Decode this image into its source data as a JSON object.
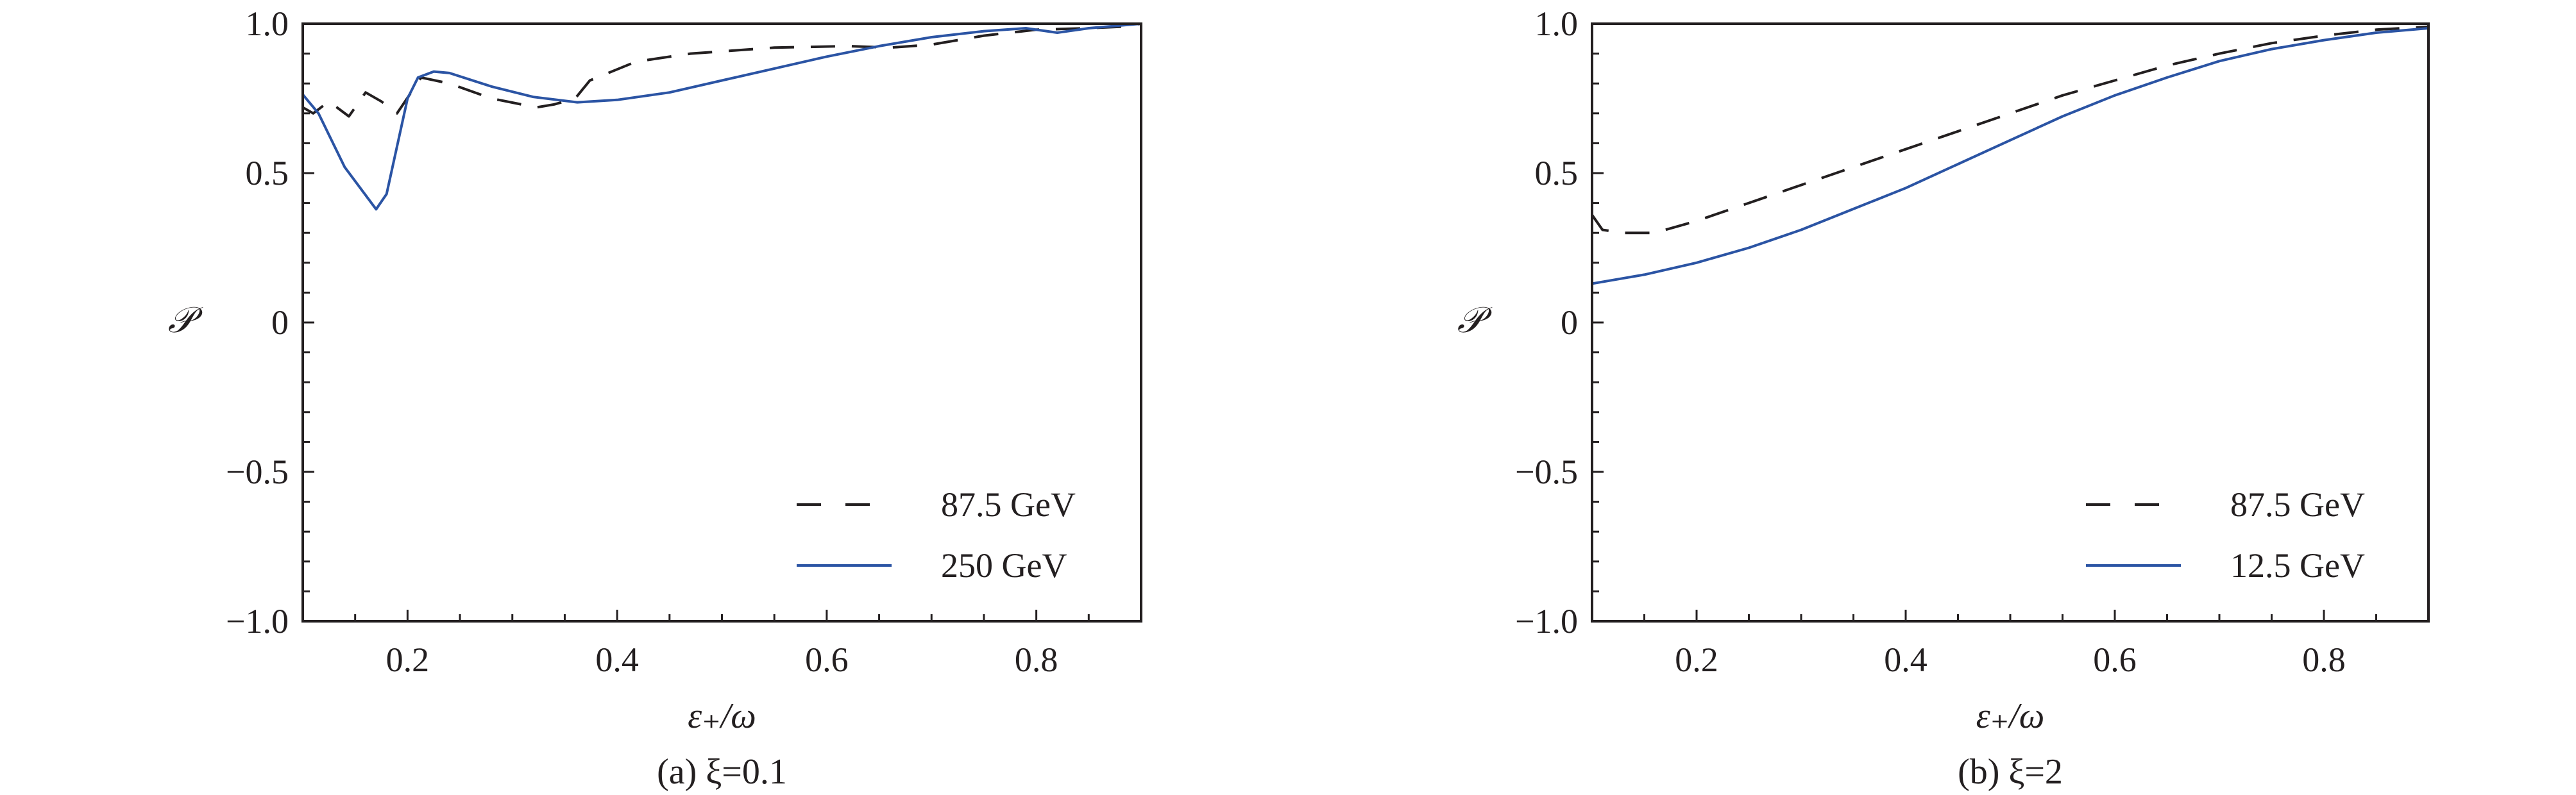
{
  "chart_data": [
    {
      "type": "line",
      "id": "a",
      "caption": "(a) ξ=0.1",
      "xlabel": "ε₊/ω",
      "ylabel": "𝒫",
      "xlim": [
        0.1,
        0.9
      ],
      "ylim": [
        -1.0,
        1.0
      ],
      "xticks": [
        0.2,
        0.4,
        0.6,
        0.8
      ],
      "xtick_labels": [
        "0.2",
        "0.4",
        "0.6",
        "0.8"
      ],
      "yticks": [
        -1.0,
        -0.5,
        0,
        0.5,
        1.0
      ],
      "ytick_labels": [
        "−1.0",
        "−0.5",
        "0",
        "0.5",
        "1.0"
      ],
      "grid": false,
      "legend_position": "bottom-right",
      "series": [
        {
          "name": "87.5 GeV",
          "style": "dashed",
          "color": "#231f20",
          "x": [
            0.1,
            0.11,
            0.125,
            0.144,
            0.16,
            0.175,
            0.19,
            0.213,
            0.24,
            0.28,
            0.323,
            0.34,
            0.36,
            0.374,
            0.418,
            0.47,
            0.55,
            0.62,
            0.66,
            0.7,
            0.75,
            0.8,
            0.85,
            0.88,
            0.9
          ],
          "y": [
            0.72,
            0.7,
            0.74,
            0.69,
            0.77,
            0.74,
            0.7,
            0.82,
            0.8,
            0.75,
            0.72,
            0.73,
            0.75,
            0.81,
            0.873,
            0.9,
            0.92,
            0.925,
            0.92,
            0.93,
            0.96,
            0.98,
            0.985,
            0.99,
            1.0
          ]
        },
        {
          "name": "250 GeV",
          "style": "solid",
          "color": "#2b54a4",
          "x": [
            0.1,
            0.115,
            0.14,
            0.17,
            0.18,
            0.2,
            0.21,
            0.225,
            0.24,
            0.28,
            0.32,
            0.362,
            0.4,
            0.45,
            0.5,
            0.55,
            0.6,
            0.65,
            0.7,
            0.75,
            0.79,
            0.82,
            0.85,
            0.9
          ],
          "y": [
            0.763,
            0.7,
            0.52,
            0.379,
            0.43,
            0.75,
            0.82,
            0.84,
            0.835,
            0.79,
            0.755,
            0.737,
            0.745,
            0.77,
            0.81,
            0.85,
            0.89,
            0.925,
            0.955,
            0.975,
            0.985,
            0.97,
            0.985,
            1.0
          ]
        }
      ]
    },
    {
      "type": "line",
      "id": "b",
      "caption": "(b) ξ=2",
      "xlabel": "ε₊/ω",
      "ylabel": "𝒫",
      "xlim": [
        0.1,
        0.9
      ],
      "ylim": [
        -1.0,
        1.0
      ],
      "xticks": [
        0.2,
        0.4,
        0.6,
        0.8
      ],
      "xtick_labels": [
        "0.2",
        "0.4",
        "0.6",
        "0.8"
      ],
      "yticks": [
        -1.0,
        -0.5,
        0,
        0.5,
        1.0
      ],
      "ytick_labels": [
        "−1.0",
        "−0.5",
        "0",
        "0.5",
        "1.0"
      ],
      "grid": false,
      "legend_position": "bottom-right",
      "series": [
        {
          "name": "87.5 GeV",
          "style": "dashed",
          "color": "#231f20",
          "x": [
            0.1,
            0.11,
            0.13,
            0.16,
            0.2,
            0.25,
            0.3,
            0.35,
            0.4,
            0.45,
            0.5,
            0.55,
            0.6,
            0.65,
            0.7,
            0.75,
            0.8,
            0.85,
            0.9
          ],
          "y": [
            0.36,
            0.31,
            0.3,
            0.3,
            0.34,
            0.4,
            0.46,
            0.52,
            0.58,
            0.64,
            0.7,
            0.76,
            0.81,
            0.86,
            0.9,
            0.935,
            0.96,
            0.98,
            0.99
          ]
        },
        {
          "name": "12.5 GeV",
          "style": "solid",
          "color": "#2b54a4",
          "x": [
            0.1,
            0.15,
            0.2,
            0.25,
            0.3,
            0.35,
            0.4,
            0.45,
            0.5,
            0.55,
            0.6,
            0.65,
            0.7,
            0.75,
            0.8,
            0.85,
            0.9
          ],
          "y": [
            0.13,
            0.16,
            0.2,
            0.25,
            0.31,
            0.38,
            0.45,
            0.53,
            0.61,
            0.69,
            0.76,
            0.82,
            0.875,
            0.915,
            0.945,
            0.97,
            0.985
          ]
        }
      ]
    }
  ]
}
